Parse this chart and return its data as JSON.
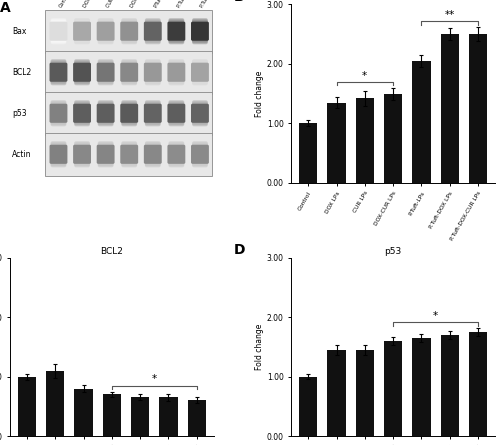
{
  "categories": [
    "Control",
    "DOX LPs",
    "CUR LPs",
    "DOX-CUR LPs",
    "P.Tuft-LPs",
    "P.Tuft-DOX LPs",
    "P.Tuft-DOX-CUR LPs"
  ],
  "bax_values": [
    1.0,
    1.35,
    1.42,
    1.5,
    2.05,
    2.5,
    2.5
  ],
  "bax_errors": [
    0.05,
    0.1,
    0.12,
    0.1,
    0.1,
    0.1,
    0.12
  ],
  "bcl2_values": [
    1.0,
    1.1,
    0.8,
    0.7,
    0.65,
    0.65,
    0.6
  ],
  "bcl2_errors": [
    0.05,
    0.12,
    0.06,
    0.05,
    0.05,
    0.06,
    0.05
  ],
  "p53_values": [
    1.0,
    1.45,
    1.45,
    1.6,
    1.65,
    1.7,
    1.75
  ],
  "p53_errors": [
    0.04,
    0.08,
    0.08,
    0.06,
    0.06,
    0.06,
    0.07
  ],
  "bar_color": "#111111",
  "bar_width": 0.65,
  "ylim": [
    0,
    3.0
  ],
  "yticks": [
    0.0,
    1.0,
    2.0,
    3.0
  ],
  "ylabel": "Fold change",
  "titles": [
    "Bax",
    "BCL2",
    "p53"
  ],
  "bax_bracket1": [
    1,
    3,
    "*"
  ],
  "bax_bracket2": [
    4,
    6,
    "**"
  ],
  "bcl2_bracket": [
    3,
    6,
    "*"
  ],
  "p53_bracket": [
    3,
    6,
    "*"
  ],
  "blot_col_labels": [
    "Control",
    "DOX LPs",
    "CUR LPs",
    "DOX-CUR LPs",
    "P.Tuft-LPs",
    "P.Tuft-DOX LPs",
    "P.Tuft-DOX-CUR LPs"
  ],
  "blot_row_labels": [
    "Bax",
    "BCL2",
    "p53",
    "Actin"
  ],
  "bax_intensities": [
    0.15,
    0.38,
    0.42,
    0.48,
    0.68,
    0.85,
    0.88
  ],
  "bcl2_intensities": [
    0.72,
    0.75,
    0.6,
    0.52,
    0.45,
    0.44,
    0.4
  ],
  "p53_intensities": [
    0.55,
    0.7,
    0.7,
    0.72,
    0.68,
    0.7,
    0.68
  ],
  "actin_intensities": [
    0.55,
    0.52,
    0.53,
    0.5,
    0.52,
    0.5,
    0.51
  ]
}
